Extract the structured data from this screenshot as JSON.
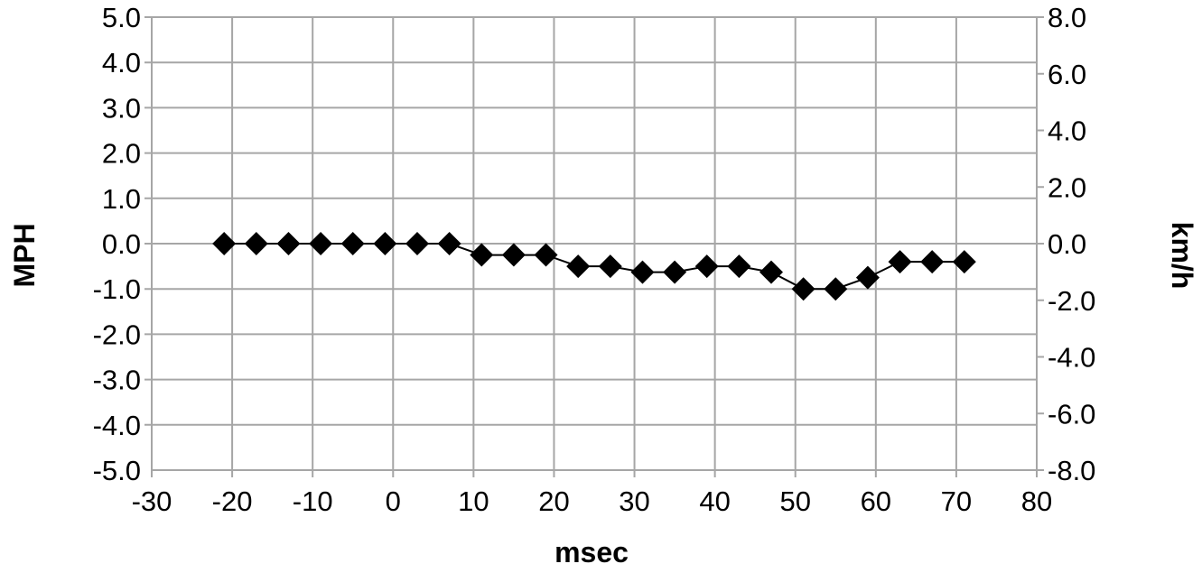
{
  "chart_data": {
    "type": "scatter",
    "title": "",
    "xlabel": "msec",
    "ylabel": "MPH",
    "y2label": "km/h",
    "xlim": [
      -30,
      80
    ],
    "ylim": [
      -5.0,
      5.0
    ],
    "y2lim": [
      -8.0,
      8.0
    ],
    "x_ticks": [
      "-30",
      "-20",
      "-10",
      "0",
      "10",
      "20",
      "30",
      "40",
      "50",
      "60",
      "70",
      "80"
    ],
    "y_ticks": [
      "5.0",
      "4.0",
      "3.0",
      "2.0",
      "1.0",
      "0.0",
      "-1.0",
      "-2.0",
      "-3.0",
      "-4.0",
      "-5.0"
    ],
    "y2_ticks": [
      "8.0",
      "6.0",
      "4.0",
      "2.0",
      "0.0",
      "-2.0",
      "-4.0",
      "-6.0",
      "-8.0"
    ],
    "grid": true,
    "legend": "none",
    "line_connected": true,
    "marker": "diamond",
    "color": "#000000",
    "gridline_color": "#a6a6a6",
    "series": [
      {
        "x": [
          -21,
          -17,
          -13,
          -9,
          -5,
          -1,
          3,
          7,
          11,
          15,
          19,
          23,
          27,
          31,
          35,
          39,
          43,
          47,
          51,
          55,
          59,
          63,
          67,
          71
        ],
        "y": [
          0.0,
          0.0,
          0.0,
          0.0,
          0.0,
          0.0,
          0.0,
          0.0,
          -0.25,
          -0.25,
          -0.25,
          -0.5,
          -0.5,
          -0.63,
          -0.63,
          -0.5,
          -0.5,
          -0.63,
          -1.0,
          -1.0,
          -0.75,
          -0.4,
          -0.4,
          -0.4
        ]
      }
    ]
  }
}
